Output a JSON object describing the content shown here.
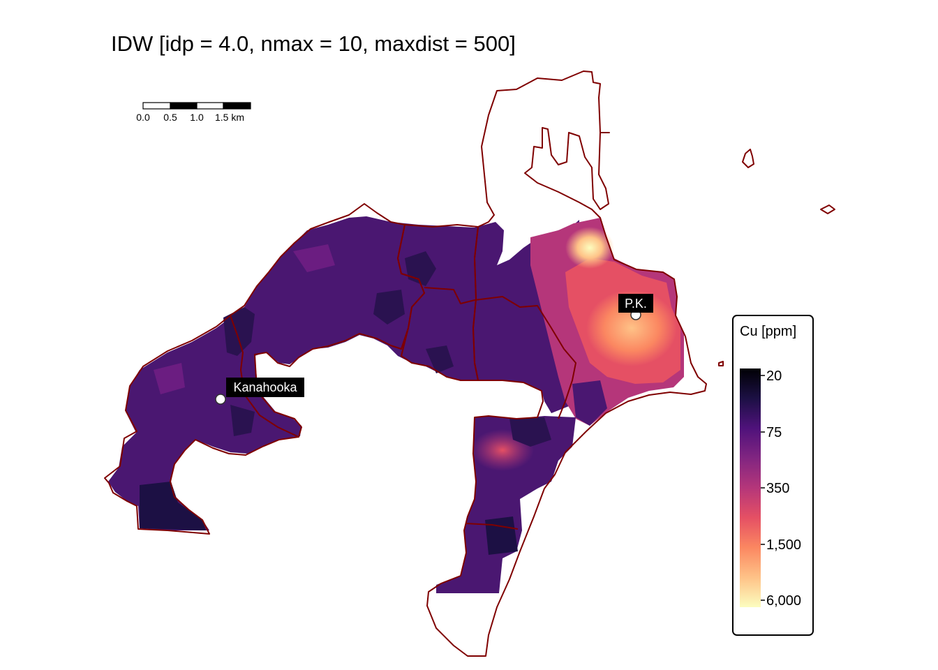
{
  "title": "IDW [idp = 4.0, nmax = 10, maxdist = 500]",
  "scale_bar": {
    "labels": [
      "0.0",
      "0.5",
      "1.0",
      "1.5 km"
    ],
    "colors": [
      "#ffffff",
      "#000000",
      "#ffffff",
      "#000000"
    ]
  },
  "places": [
    {
      "id": "kanahooka",
      "name": "Kanahooka"
    },
    {
      "id": "pk",
      "name": "P.K."
    }
  ],
  "legend": {
    "title": "Cu [ppm]",
    "ticks": [
      "20",
      "75",
      "350",
      "1,500",
      "6,000"
    ],
    "palette": [
      "#000004",
      "#1c1044",
      "#4f127b",
      "#812581",
      "#b5367a",
      "#e55064",
      "#fb8761",
      "#fec287",
      "#fcfdbf"
    ]
  },
  "colors": {
    "boundary": "#7f0000",
    "label_bg": "#000000",
    "label_text": "#ffffff"
  }
}
